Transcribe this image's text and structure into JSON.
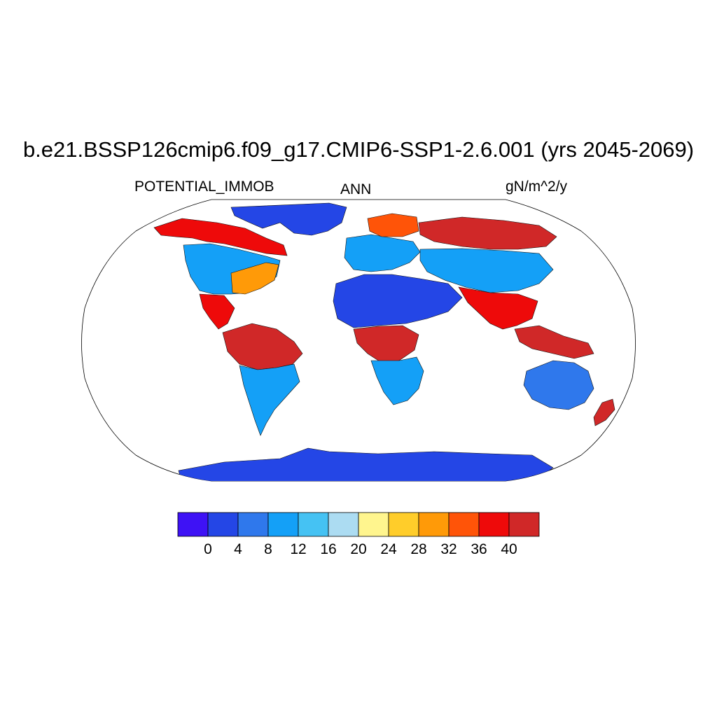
{
  "title": "b.e21.BSSP126cmip6.f09_g17.CMIP6-SSP1-2.6.001 (yrs 2045-2069)",
  "subtitle_left": "POTENTIAL_IMMOB",
  "subtitle_center": "ANN",
  "subtitle_right": "gN/m^2/y",
  "map_data": {
    "projection": "robinson",
    "variable": "POTENTIAL_IMMOB",
    "season": "ANN",
    "units": "gN/m^2/y",
    "regions": [
      {
        "name": "Greenland",
        "level": 1
      },
      {
        "name": "Canada boreal",
        "level": 10
      },
      {
        "name": "United States",
        "level": 3
      },
      {
        "name": "US southeast",
        "level": 8
      },
      {
        "name": "Central America",
        "level": 10
      },
      {
        "name": "Amazon",
        "level": 11
      },
      {
        "name": "Southern South America",
        "level": 3
      },
      {
        "name": "Europe",
        "level": 3
      },
      {
        "name": "Scandinavia",
        "level": 9
      },
      {
        "name": "Siberia",
        "level": 11
      },
      {
        "name": "Sahara and Arabia",
        "level": 1
      },
      {
        "name": "Central Africa",
        "level": 11
      },
      {
        "name": "Southern Africa",
        "level": 3
      },
      {
        "name": "Central Asia",
        "level": 3
      },
      {
        "name": "South and Southeast Asia",
        "level": 10
      },
      {
        "name": "Maritime Continent",
        "level": 11
      },
      {
        "name": "Australia",
        "level": 2
      },
      {
        "name": "New Zealand",
        "level": 11
      },
      {
        "name": "Antarctica",
        "level": 1
      }
    ]
  },
  "colorbar": {
    "colors": [
      "#3e12f5",
      "#2446e6",
      "#2f78ec",
      "#14a0f7",
      "#45c2f3",
      "#acdcf2",
      "#fff58e",
      "#ffcd2a",
      "#ff9a08",
      "#ff5408",
      "#ee0a0a",
      "#d02828"
    ],
    "tick_labels": [
      "0",
      "4",
      "8",
      "12",
      "16",
      "20",
      "24",
      "28",
      "32",
      "36",
      "40"
    ]
  }
}
